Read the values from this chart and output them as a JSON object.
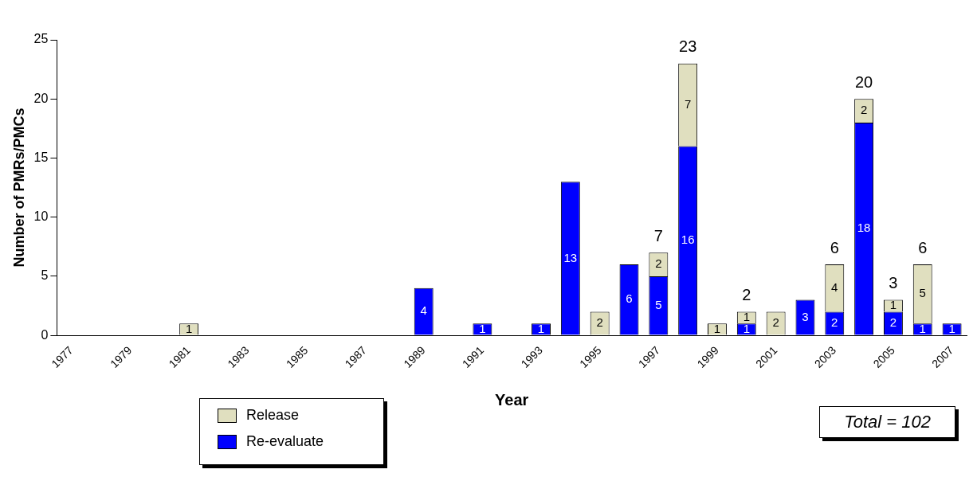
{
  "chart_data": {
    "type": "bar",
    "stacked": true,
    "xlabel": "Year",
    "ylabel": "Number of PMRs/PMCs",
    "categories": [
      "1977",
      null,
      "1979",
      null,
      "1981",
      null,
      "1983",
      null,
      "1985",
      null,
      "1987",
      null,
      "1989",
      null,
      "1991",
      null,
      "1993",
      null,
      "1995",
      null,
      "1997",
      null,
      "1999",
      null,
      "2001",
      null,
      "2003",
      null,
      "2005",
      null,
      "2007"
    ],
    "series": [
      {
        "name": "Re-evaluate",
        "color": "#0000ff",
        "values": [
          null,
          null,
          null,
          null,
          null,
          null,
          null,
          null,
          null,
          null,
          null,
          null,
          4,
          null,
          1,
          null,
          1,
          13,
          null,
          6,
          5,
          16,
          null,
          1,
          null,
          3,
          2,
          18,
          2,
          1,
          1
        ]
      },
      {
        "name": "Release",
        "color": "#e0dfbf",
        "values": [
          null,
          null,
          null,
          null,
          1,
          null,
          null,
          null,
          null,
          null,
          null,
          null,
          null,
          null,
          null,
          null,
          null,
          null,
          2,
          null,
          2,
          7,
          1,
          1,
          2,
          null,
          4,
          2,
          1,
          5,
          null
        ]
      }
    ],
    "totals": [
      null,
      null,
      null,
      null,
      null,
      null,
      null,
      null,
      null,
      null,
      null,
      null,
      null,
      null,
      null,
      null,
      null,
      null,
      null,
      null,
      "7",
      "23",
      null,
      "2",
      null,
      null,
      "6",
      "20",
      "3",
      "6",
      null
    ],
    "data_labels": true,
    "ylim": [
      0,
      25
    ],
    "yticks": [
      0,
      5,
      10,
      15,
      20,
      25
    ],
    "grid": false,
    "legend": "bottom left",
    "annotations": [
      "Total = 102"
    ]
  }
}
